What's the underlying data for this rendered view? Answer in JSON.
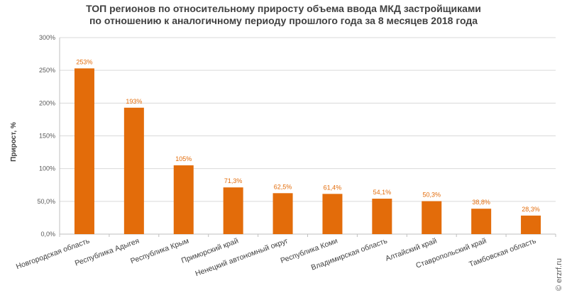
{
  "title_lines": [
    "ТОП регионов по относительному приросту объема ввода МКД застройщиками",
    "по отношению к аналогичному периоду прошлого года за 8 месяцев 2018 года"
  ],
  "watermark": "© erzrf.ru",
  "chart_data": {
    "type": "bar",
    "title": "ТОП регионов по относительному приросту объема ввода МКД застройщиками по отношению к аналогичному периоду прошлого года за 8 месяцев 2018 года",
    "ylabel": "Прирост, %",
    "xlabel": "",
    "ylim": [
      0,
      300
    ],
    "yticks": [
      0,
      50,
      100,
      150,
      200,
      250,
      300
    ],
    "ytick_labels": [
      "0,0%",
      "50,0%",
      "100%",
      "150%",
      "200%",
      "250%",
      "300%"
    ],
    "grid": true,
    "bar_color": "#e36c0a",
    "categories": [
      "Новгородская область",
      "Республика Адыгея",
      "Республика Крым",
      "Приморский край",
      "Ненецкий автономный округ",
      "Республика Коми",
      "Владимирская область",
      "Алтайский край",
      "Ставропольский край",
      "Тамбовская область"
    ],
    "values": [
      253,
      193,
      105,
      71.3,
      62.5,
      61.4,
      54.1,
      50.3,
      38.8,
      28.3
    ],
    "data_labels": [
      "253%",
      "193%",
      "105%",
      "71,3%",
      "62,5%",
      "61,4%",
      "54,1%",
      "50,3%",
      "38,8%",
      "28,3%"
    ]
  }
}
